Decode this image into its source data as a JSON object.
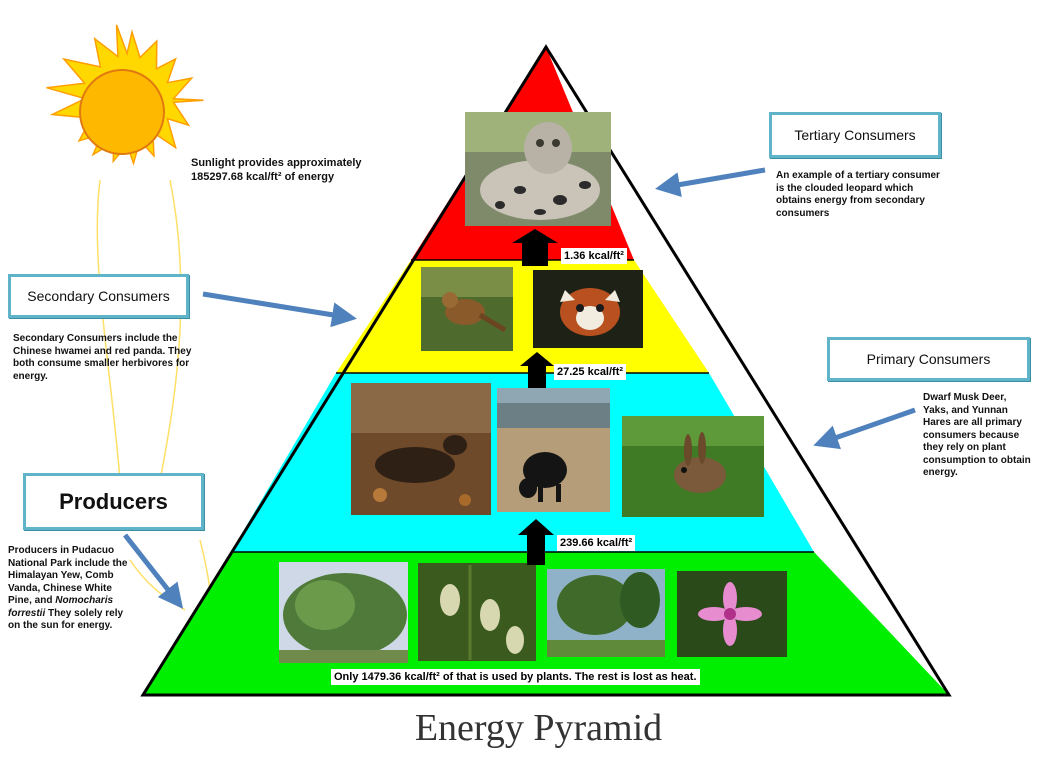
{
  "title": "Energy Pyramid",
  "colors": {
    "top": "#ff0000",
    "secondary": "#ffff00",
    "primary": "#00ffff",
    "producers": "#00ee00",
    "sun": "#ffb800",
    "sun_rays": "#ffd800",
    "box_border": "#5fb4c9",
    "arrows": "#4f81bd"
  },
  "sun": {
    "text": "Sunlight provides approximately 185297.68 kcal/ft² of energy"
  },
  "labels": {
    "tertiary": {
      "title": "Tertiary Consumers",
      "text": "An example of a tertiary consumer is the clouded leopard which obtains energy from secondary consumers"
    },
    "secondary": {
      "title": "Secondary Consumers",
      "text": "Secondary Consumers include the Chinese hwamei and red panda. They both consume smaller herbivores for energy."
    },
    "primary": {
      "title": "Primary Consumers",
      "text": "Dwarf Musk Deer, Yaks, and Yunnan Hares are all primary consumers because they rely on plant consumption to obtain energy."
    },
    "producers": {
      "title": "Producers",
      "text_start": "Producers in Pudacuo National Park include the Himalayan Yew, Comb Vanda, Chinese White Pine, and",
      "text_species": "Nomocharis forrestii",
      "text_end": "They solely rely on the sun for energy."
    }
  },
  "energy": {
    "tertiary": "1.36 kcal/ft²",
    "secondary": "27.25 kcal/ft²",
    "primary": "239.66 kcal/ft²",
    "plants": "Only 1479.36 kcal/ft² of that is used by plants. The rest is lost as heat."
  }
}
